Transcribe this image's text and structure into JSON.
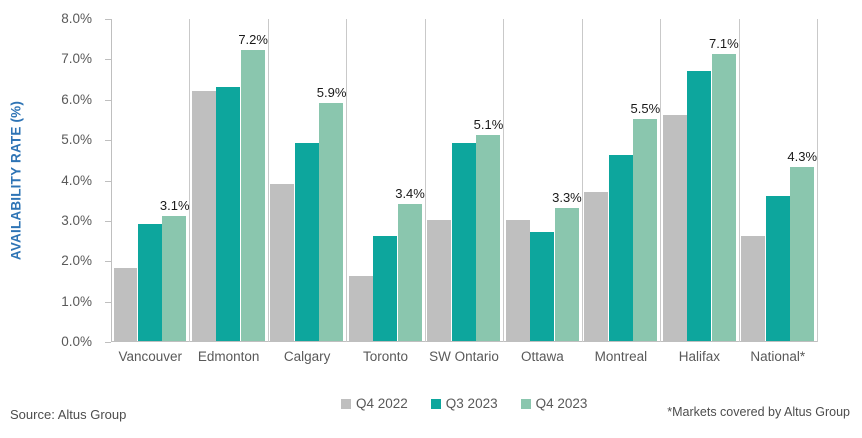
{
  "chart_data": {
    "type": "bar",
    "title": "",
    "xlabel": "",
    "ylabel": "AVAILABILITY RATE (%)",
    "ylim": [
      0,
      8
    ],
    "ytick_step": 1,
    "y_tick_labels": [
      "8.0%",
      "7.0%",
      "6.0%",
      "5.0%",
      "4.0%",
      "3.0%",
      "2.0%",
      "1.0%",
      "0.0%"
    ],
    "grid": "vertical-category-separators",
    "legend_position": "bottom-center",
    "categories": [
      "Vancouver",
      "Edmonton",
      "Calgary",
      "Toronto",
      "SW Ontario",
      "Ottawa",
      "Montreal",
      "Halifax",
      "National*"
    ],
    "series": [
      {
        "name": "Q4 2022",
        "color": "#BFBFBF",
        "show_value_labels": false,
        "values": [
          1.8,
          6.2,
          3.9,
          1.6,
          3.0,
          3.0,
          3.7,
          5.6,
          2.6
        ]
      },
      {
        "name": "Q3 2023",
        "color": "#0DA69D",
        "show_value_labels": false,
        "values": [
          2.9,
          6.3,
          4.9,
          2.6,
          4.9,
          2.7,
          4.6,
          6.7,
          3.6
        ]
      },
      {
        "name": "Q4 2023",
        "color": "#8AC6AE",
        "show_value_labels": true,
        "values": [
          3.1,
          7.2,
          5.9,
          3.4,
          5.1,
          3.3,
          5.5,
          7.1,
          4.3
        ],
        "value_labels": [
          "3.1%",
          "7.2%",
          "5.9%",
          "3.4%",
          "5.1%",
          "3.3%",
          "5.5%",
          "7.1%",
          "4.3%"
        ]
      }
    ]
  },
  "footer": {
    "source": "Source: Altus Group",
    "footnote": "*Markets covered by Altus Group"
  },
  "colors": {
    "axis_title": "#2E74B5",
    "axis_text": "#595959",
    "separator_line": "#C9C9C9",
    "axis_line": "#BFBFBF",
    "value_label_text": "#1a1a1a"
  }
}
